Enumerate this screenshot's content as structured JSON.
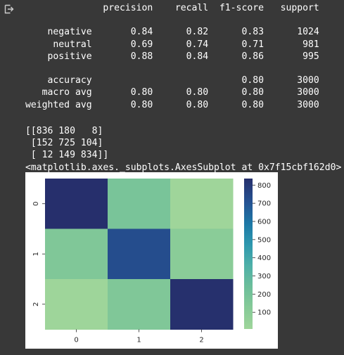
{
  "output_icon": "output-arrow-icon",
  "report": {
    "header": [
      "precision",
      "recall",
      "f1-score",
      "support"
    ],
    "rows": [
      {
        "label": "negative",
        "precision": "0.84",
        "recall": "0.82",
        "f1": "0.83",
        "support": "1024"
      },
      {
        "label": "neutral",
        "precision": "0.69",
        "recall": "0.74",
        "f1": "0.71",
        "support": "981"
      },
      {
        "label": "positive",
        "precision": "0.88",
        "recall": "0.84",
        "f1": "0.86",
        "support": "995"
      }
    ],
    "summary": [
      {
        "label": "accuracy",
        "precision": "",
        "recall": "",
        "f1": "0.80",
        "support": "3000"
      },
      {
        "label": "macro avg",
        "precision": "0.80",
        "recall": "0.80",
        "f1": "0.80",
        "support": "3000"
      },
      {
        "label": "weighted avg",
        "precision": "0.80",
        "recall": "0.80",
        "f1": "0.80",
        "support": "3000"
      }
    ]
  },
  "confusion_matrix_text": [
    "[[836 180   8]",
    " [152 725 104]",
    " [ 12 149 834]]"
  ],
  "axes_repr": "<matplotlib.axes._subplots.AxesSubplot at 0x7f15cbf162d0>",
  "chart_data": {
    "type": "heatmap",
    "x_ticks": [
      "0",
      "1",
      "2"
    ],
    "y_ticks": [
      "0",
      "1",
      "2"
    ],
    "values": [
      [
        836,
        180,
        8
      ],
      [
        152,
        725,
        104
      ],
      [
        12,
        149,
        834
      ]
    ],
    "colormap": "YlGnBu",
    "colorbar_ticks": [
      "100",
      "200",
      "300",
      "400",
      "500",
      "600",
      "700",
      "800"
    ],
    "colorbar_range": [
      8,
      836
    ],
    "xlabel": "",
    "ylabel": "",
    "title": ""
  }
}
